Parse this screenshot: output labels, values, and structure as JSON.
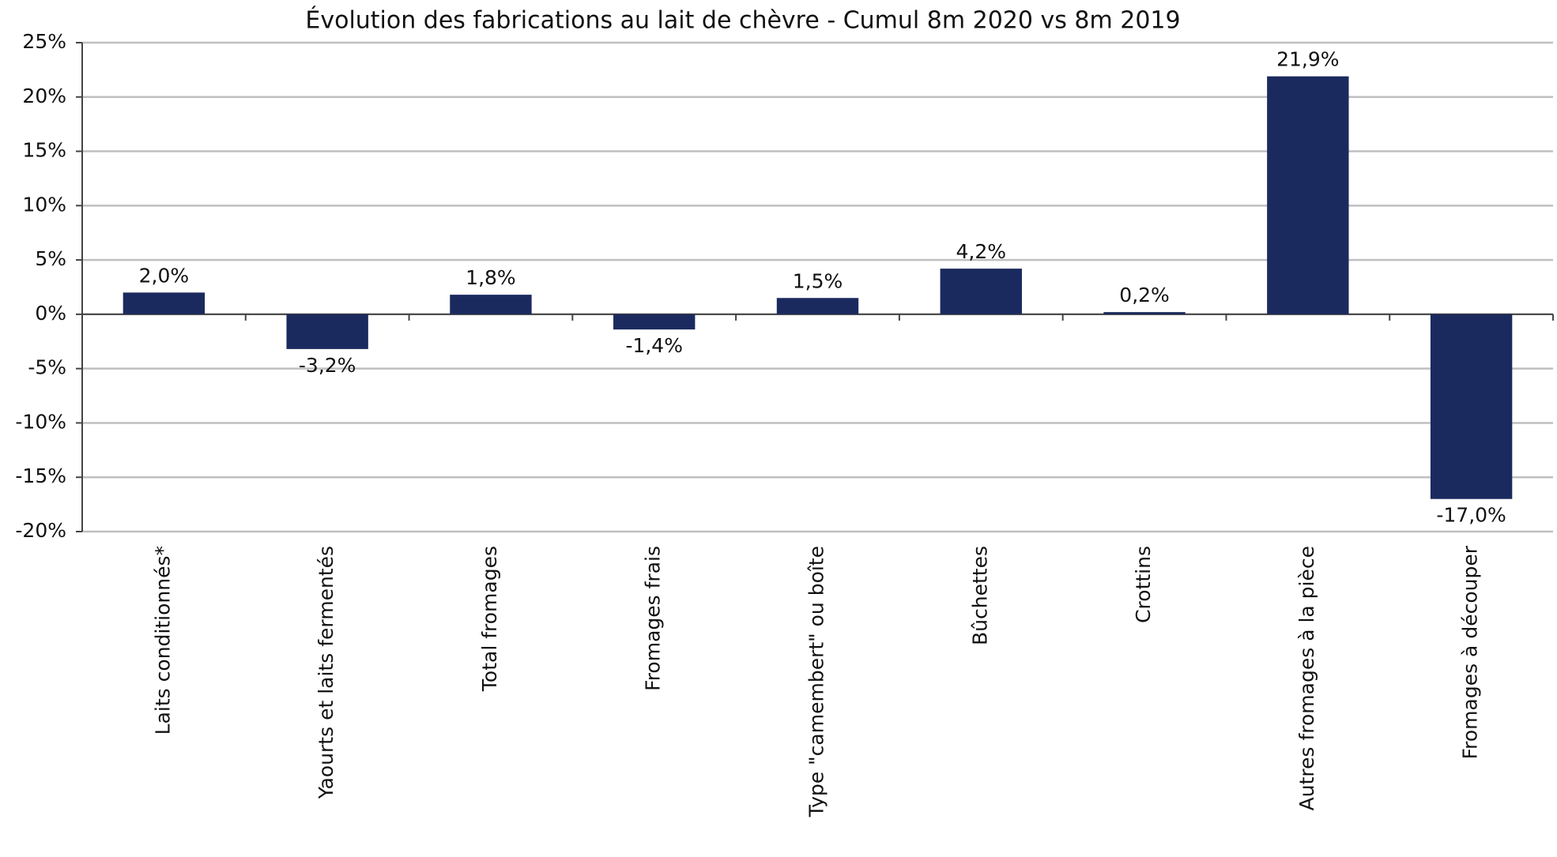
{
  "chart_data": {
    "type": "bar",
    "title": "Évolution des fabrications au lait de chèvre - Cumul 8m 2020 vs 8m 2019",
    "categories": [
      "Laits conditionnés*",
      "Yaourts et laits fermentés",
      "Total fromages",
      "Fromages frais",
      "Type \"camembert\" ou boîte",
      "Bûchettes",
      "Crottins",
      "Autres fromages à la pièce",
      "Fromages à découper"
    ],
    "values": [
      2.0,
      -3.2,
      1.8,
      -1.4,
      1.5,
      4.2,
      0.2,
      21.9,
      -17.0
    ],
    "value_labels": [
      "2,0%",
      "-3,2%",
      "1,8%",
      "-1,4%",
      "1,5%",
      "4,2%",
      "0,2%",
      "21,9%",
      "-17,0%"
    ],
    "color": "#1b2a5e",
    "ylim": [
      -20,
      25
    ],
    "yticks": [
      {
        "value": -20,
        "label": "-20%"
      },
      {
        "value": -15,
        "label": "-15%"
      },
      {
        "value": -10,
        "label": "-10%"
      },
      {
        "value": -5,
        "label": "-5%"
      },
      {
        "value": 0,
        "label": "0%"
      },
      {
        "value": 5,
        "label": "5%"
      },
      {
        "value": 10,
        "label": "10%"
      },
      {
        "value": 15,
        "label": "15%"
      },
      {
        "value": 20,
        "label": "20%"
      },
      {
        "value": 25,
        "label": "25%"
      }
    ],
    "grid": true
  }
}
